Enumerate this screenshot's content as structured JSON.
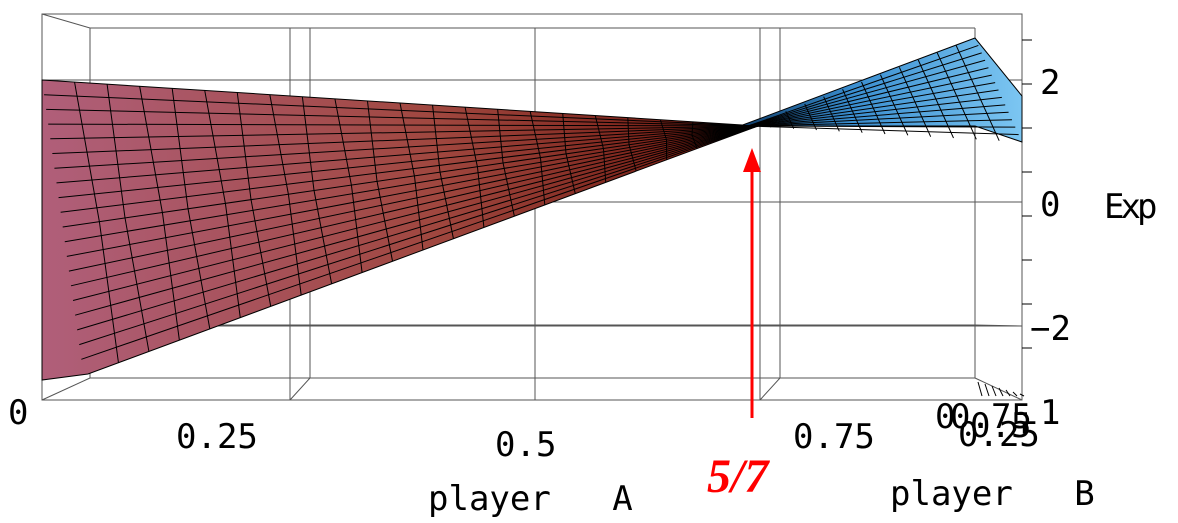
{
  "chart_data": {
    "type": "surface3d",
    "x_axis": {
      "label": "player A",
      "ticks": [
        "0",
        "0.25",
        "0.5",
        "0.75"
      ],
      "range": [
        0,
        1
      ]
    },
    "y_axis": {
      "label": "player B",
      "ticks": [
        "0",
        "0.25",
        "0.5",
        "0.75",
        "1"
      ],
      "range": [
        0,
        1
      ]
    },
    "z_axis": {
      "label": "Exp",
      "ticks": [
        "2",
        "0",
        "−2"
      ],
      "range": [
        -3,
        3
      ]
    },
    "surface": {
      "left_edge_z": [
        2.0,
        -2.8
      ],
      "pinch_point_z": 1.2,
      "right_edge_z": [
        2.7,
        1.0
      ]
    },
    "annotation": {
      "text": "5/7",
      "x_value": 0.714,
      "color": "#ff0000"
    },
    "colors": {
      "surface_left": "#a85d74",
      "surface_mid": "#7a1a10",
      "surface_right": "#5fb0e8",
      "mesh": "#000000",
      "arrow": "#ff0000"
    },
    "grid": true
  }
}
